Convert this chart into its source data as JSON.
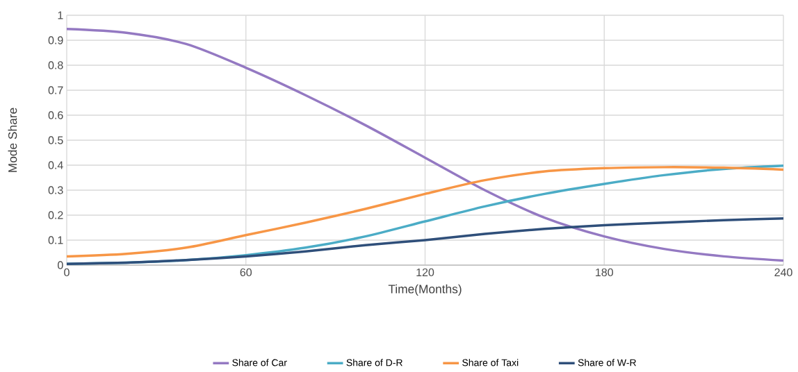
{
  "chart_data": {
    "type": "line",
    "xlabel": "Time(Months)",
    "ylabel": "Mode Share",
    "x": [
      0,
      20,
      40,
      60,
      80,
      100,
      120,
      140,
      160,
      180,
      200,
      220,
      240
    ],
    "series": [
      {
        "name": "Share of Car",
        "color": "#9479c2",
        "values": [
          0.945,
          0.93,
          0.885,
          0.79,
          0.68,
          0.56,
          0.43,
          0.3,
          0.19,
          0.115,
          0.065,
          0.035,
          0.018
        ]
      },
      {
        "name": "Share of D-R",
        "color": "#4bacc6",
        "values": [
          0.005,
          0.01,
          0.02,
          0.04,
          0.07,
          0.115,
          0.175,
          0.235,
          0.285,
          0.325,
          0.36,
          0.385,
          0.398
        ]
      },
      {
        "name": "Share of Taxi",
        "color": "#f79646",
        "values": [
          0.035,
          0.045,
          0.07,
          0.12,
          0.17,
          0.225,
          0.285,
          0.34,
          0.375,
          0.388,
          0.392,
          0.39,
          0.382
        ]
      },
      {
        "name": "Share of W-R",
        "color": "#2f4f7a",
        "values": [
          0.005,
          0.01,
          0.02,
          0.035,
          0.055,
          0.08,
          0.1,
          0.125,
          0.145,
          0.16,
          0.17,
          0.18,
          0.187
        ]
      }
    ],
    "xlim": [
      0,
      240
    ],
    "xticks": [
      0,
      60,
      120,
      180,
      240
    ],
    "ylim": [
      0,
      1
    ],
    "yticks": [
      0,
      0.1,
      0.2,
      0.3,
      0.4,
      0.5,
      0.6,
      0.7,
      0.8,
      0.9,
      1
    ],
    "grid": true,
    "legend": "bottom",
    "marker": "none",
    "line_style": "solid"
  }
}
